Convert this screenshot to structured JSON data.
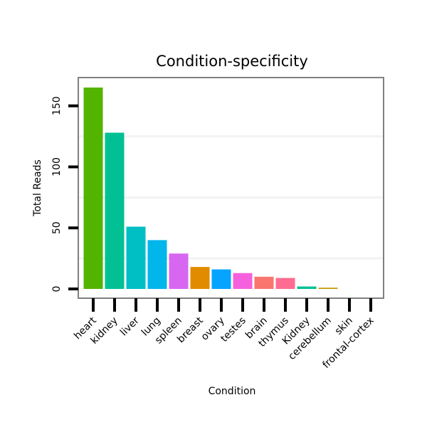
{
  "chart_data": {
    "type": "bar",
    "title": "Condition-specificity",
    "xlabel": "Condition",
    "ylabel": "Total Reads",
    "ylim": [
      0,
      165
    ],
    "yticks": [
      0,
      50,
      100,
      150
    ],
    "grid": "faint horizontal minor lines",
    "legend": "none",
    "categories": [
      "heart",
      "kidney",
      "liver",
      "lung",
      "spleen",
      "breast",
      "ovary",
      "testes",
      "brain",
      "thymus",
      "Kidney",
      "cerebellum",
      "skin",
      "frontal-cortex"
    ],
    "values": [
      165,
      128,
      51,
      40,
      29,
      18,
      16,
      13,
      10,
      9,
      2,
      1,
      0,
      0
    ],
    "colors": [
      "#53B400",
      "#00C094",
      "#00BFC4",
      "#00B6EB",
      "#D767F0",
      "#E08B00",
      "#06A4FF",
      "#F561DD",
      "#F8766D",
      "#FF6C91",
      "#00C094",
      "#C49A00",
      "#A58AFF",
      "#FB61D7"
    ]
  }
}
